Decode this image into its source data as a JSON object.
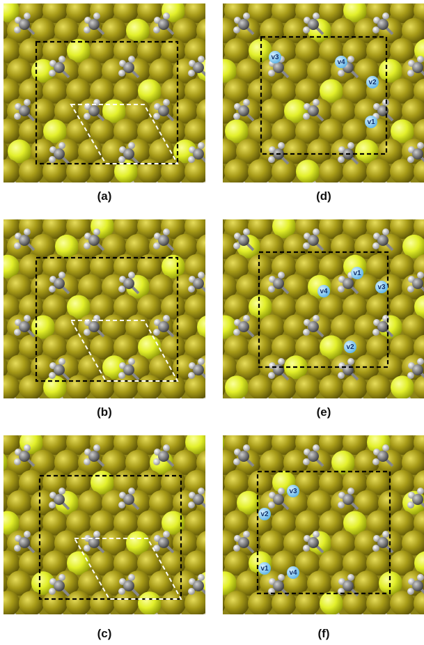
{
  "panels": [
    {
      "label": "(a)",
      "vacancies": []
    },
    {
      "label": "(b)",
      "vacancies": []
    },
    {
      "label": "(c)",
      "vacancies": []
    },
    {
      "label": "(d)",
      "vacancies": [
        "v3",
        "v4",
        "v2",
        "v1"
      ]
    },
    {
      "label": "(e)",
      "vacancies": [
        "v1",
        "v3",
        "v4",
        "v2"
      ]
    },
    {
      "label": "(f)",
      "vacancies": [
        "v3",
        "v2",
        "v1",
        "v4"
      ]
    }
  ]
}
